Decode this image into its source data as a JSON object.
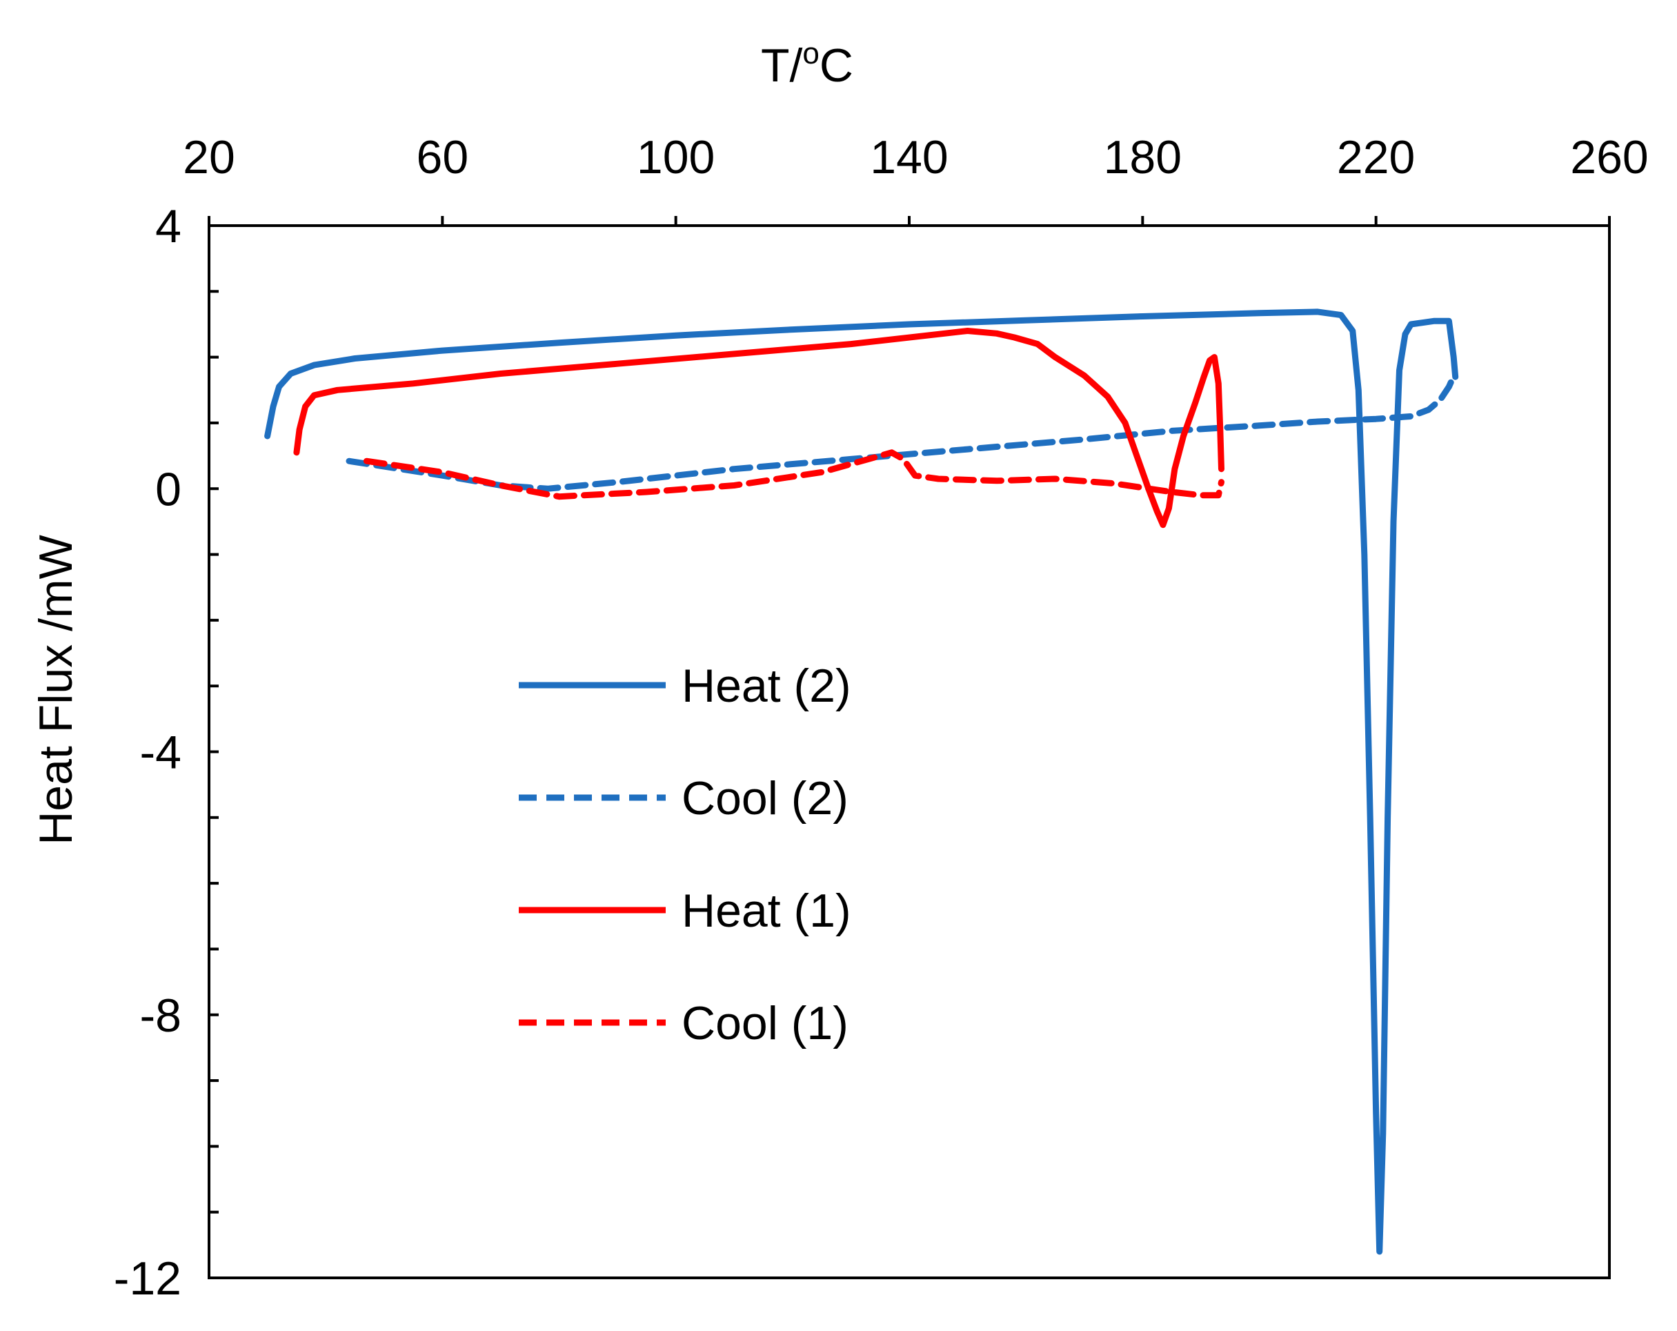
{
  "chart_data": {
    "type": "line",
    "xlabel": "T/",
    "xlabel_sup": "o",
    "xlabel_suffix": "C",
    "ylabel": "Heat Flux /mW",
    "xaxis_position": "top",
    "xlim": [
      20,
      260
    ],
    "ylim": [
      -12,
      4
    ],
    "xticks": [
      20,
      60,
      100,
      140,
      180,
      220,
      260
    ],
    "yticks": [
      4,
      0,
      -4,
      -8,
      -12
    ],
    "xtick_labels": [
      "20",
      "60",
      "100",
      "140",
      "180",
      "220",
      "260"
    ],
    "ytick_labels": [
      "4",
      "0",
      "-4",
      "-8",
      "-12"
    ],
    "y_minor_step": 1,
    "grid": false,
    "legend_position": "center-left",
    "series": [
      {
        "name": "Heat (2)",
        "color": "#1f6fc0",
        "dash": "solid",
        "points": [
          [
            30,
            0.8
          ],
          [
            31,
            1.25
          ],
          [
            32,
            1.55
          ],
          [
            34,
            1.75
          ],
          [
            38,
            1.88
          ],
          [
            45,
            1.98
          ],
          [
            60,
            2.1
          ],
          [
            80,
            2.22
          ],
          [
            100,
            2.33
          ],
          [
            120,
            2.42
          ],
          [
            140,
            2.5
          ],
          [
            160,
            2.56
          ],
          [
            180,
            2.62
          ],
          [
            200,
            2.67
          ],
          [
            210,
            2.69
          ],
          [
            214,
            2.64
          ],
          [
            216,
            2.4
          ],
          [
            217,
            1.5
          ],
          [
            218,
            -1.0
          ],
          [
            219,
            -5.0
          ],
          [
            220,
            -9.5
          ],
          [
            220.6,
            -11.6
          ],
          [
            221.2,
            -9.8
          ],
          [
            222,
            -5.0
          ],
          [
            223,
            -0.5
          ],
          [
            224,
            1.8
          ],
          [
            225,
            2.35
          ],
          [
            226,
            2.5
          ],
          [
            230,
            2.55
          ],
          [
            232.5,
            2.55
          ],
          [
            233.3,
            2.0
          ],
          [
            233.6,
            1.7
          ]
        ]
      },
      {
        "name": "Cool (2)",
        "color": "#1f6fc0",
        "dash": "dashed",
        "points": [
          [
            44,
            0.42
          ],
          [
            60,
            0.2
          ],
          [
            70,
            0.05
          ],
          [
            78,
            0.0
          ],
          [
            90,
            0.1
          ],
          [
            110,
            0.3
          ],
          [
            130,
            0.45
          ],
          [
            150,
            0.6
          ],
          [
            170,
            0.75
          ],
          [
            185,
            0.88
          ],
          [
            200,
            0.96
          ],
          [
            210,
            1.02
          ],
          [
            220,
            1.06
          ],
          [
            226,
            1.1
          ],
          [
            229,
            1.2
          ],
          [
            231,
            1.35
          ],
          [
            232.5,
            1.55
          ],
          [
            233.5,
            1.75
          ]
        ]
      },
      {
        "name": "Heat (1)",
        "color": "#ff0000",
        "dash": "solid",
        "points": [
          [
            35,
            0.55
          ],
          [
            35.5,
            0.9
          ],
          [
            36.5,
            1.25
          ],
          [
            38,
            1.42
          ],
          [
            42,
            1.5
          ],
          [
            55,
            1.6
          ],
          [
            70,
            1.75
          ],
          [
            90,
            1.9
          ],
          [
            110,
            2.05
          ],
          [
            130,
            2.2
          ],
          [
            145,
            2.35
          ],
          [
            150,
            2.4
          ],
          [
            155,
            2.36
          ],
          [
            158,
            2.3
          ],
          [
            162,
            2.2
          ],
          [
            165,
            2.0
          ],
          [
            170,
            1.72
          ],
          [
            174,
            1.4
          ],
          [
            177,
            1.0
          ],
          [
            179,
            0.5
          ],
          [
            181,
            0.0
          ],
          [
            182.5,
            -0.35
          ],
          [
            183.5,
            -0.55
          ],
          [
            184.5,
            -0.3
          ],
          [
            185.5,
            0.3
          ],
          [
            187,
            0.8
          ],
          [
            189,
            1.3
          ],
          [
            190.5,
            1.7
          ],
          [
            191.5,
            1.95
          ],
          [
            192.3,
            2.0
          ],
          [
            193,
            1.6
          ],
          [
            193.3,
            0.9
          ],
          [
            193.5,
            0.3
          ]
        ]
      },
      {
        "name": "Cool (1)",
        "color": "#ff0000",
        "dash": "dashed",
        "points": [
          [
            47,
            0.42
          ],
          [
            60,
            0.25
          ],
          [
            70,
            0.05
          ],
          [
            80,
            -0.12
          ],
          [
            95,
            -0.05
          ],
          [
            110,
            0.05
          ],
          [
            125,
            0.25
          ],
          [
            133,
            0.45
          ],
          [
            137,
            0.55
          ],
          [
            139,
            0.45
          ],
          [
            141,
            0.2
          ],
          [
            145,
            0.15
          ],
          [
            155,
            0.12
          ],
          [
            165,
            0.15
          ],
          [
            175,
            0.08
          ],
          [
            185,
            -0.05
          ],
          [
            190,
            -0.1
          ],
          [
            193,
            -0.1
          ],
          [
            193.5,
            0.1
          ]
        ]
      }
    ]
  }
}
